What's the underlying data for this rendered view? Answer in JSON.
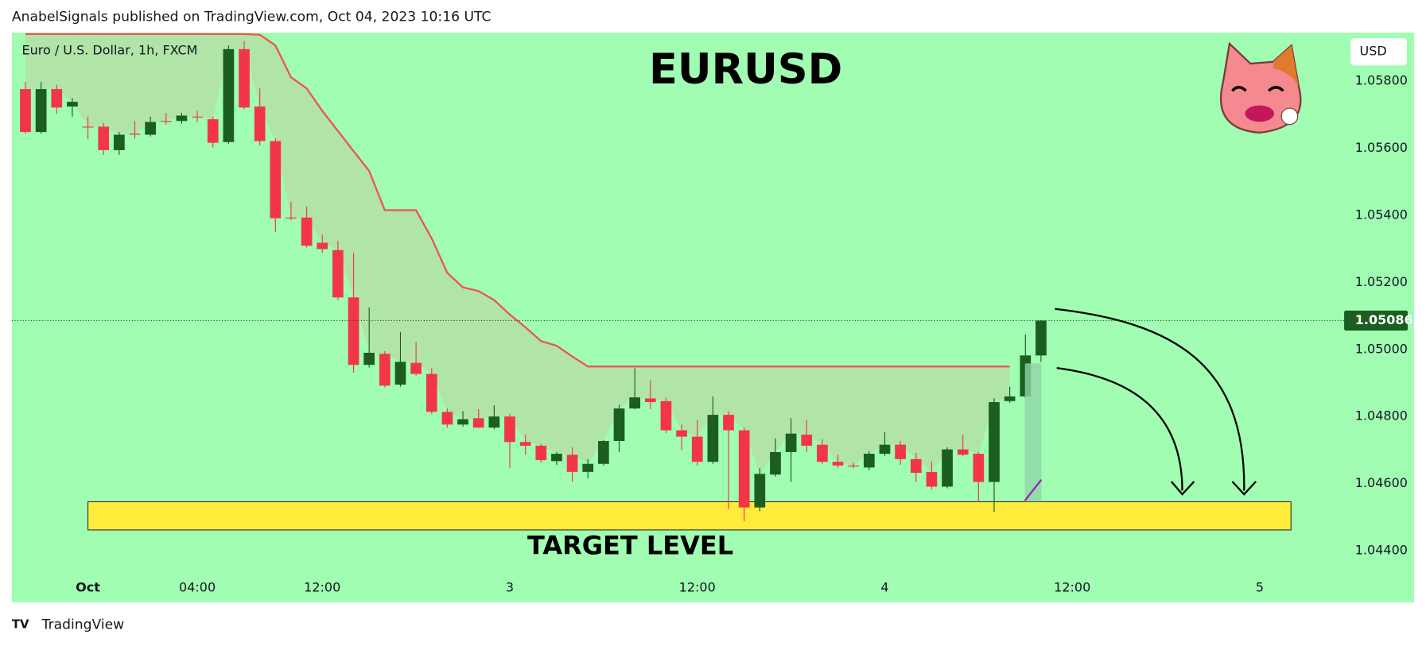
{
  "chart_data": {
    "type": "candlestick",
    "title": "EURUSD",
    "publisher_note": "AnabelSignals published on TradingView.com, Oct 04, 2023 10:16 UTC",
    "symbol": "Euro / U.S. Dollar, 1h, FXCM",
    "currency": "USD",
    "brand": "TradingView",
    "up_color": "#1b5e20",
    "down_color": "#f23645",
    "background": "#a0fdb2",
    "grid": false,
    "xlim": [
      -0.87,
      84.4
    ],
    "xticks": [
      {
        "value": 4,
        "label": "Oct"
      },
      {
        "value": 11,
        "label": "04:00"
      },
      {
        "value": 19,
        "label": "12:00"
      },
      {
        "value": 31,
        "label": "3"
      },
      {
        "value": 43,
        "label": "12:00"
      },
      {
        "value": 55,
        "label": "4"
      },
      {
        "value": 67,
        "label": "12:00"
      },
      {
        "value": 79,
        "label": "5"
      }
    ],
    "ylim": [
      1.04246,
      1.05944
    ],
    "yticks": [
      {
        "value": 1.044,
        "label": "1.04400"
      },
      {
        "value": 1.046,
        "label": "1.04600"
      },
      {
        "value": 1.048,
        "label": "1.04800"
      },
      {
        "value": 1.05,
        "label": "1.05000"
      },
      {
        "value": 1.052,
        "label": "1.05200"
      },
      {
        "value": 1.054,
        "label": "1.05400"
      },
      {
        "value": 1.056,
        "label": "1.05600"
      },
      {
        "value": 1.058,
        "label": "1.05800"
      }
    ],
    "open": [
      1.05776,
      1.05648,
      1.05776,
      1.05724,
      1.05664,
      1.05664,
      1.05594,
      1.05643,
      1.0564,
      1.05681,
      1.05681,
      1.05694,
      1.05686,
      1.05618,
      1.05895,
      1.05724,
      1.05621,
      1.05393,
      1.05393,
      1.05318,
      1.05296,
      1.05155,
      1.04954,
      1.04987,
      1.04895,
      1.0496,
      1.04927,
      1.04814,
      1.04776,
      1.04795,
      1.04767,
      1.048,
      1.04724,
      1.04713,
      1.04667,
      1.04686,
      1.04635,
      1.04659,
      1.04727,
      1.04824,
      1.04854,
      1.04846,
      1.04759,
      1.0474,
      1.04665,
      1.04805,
      1.04759,
      1.04529,
      1.04627,
      1.04694,
      1.04746,
      1.04716,
      1.04665,
      1.04654,
      1.04648,
      1.04689,
      1.04716,
      1.04673,
      1.04635,
      1.04591,
      1.04702,
      1.04689,
      1.04605,
      1.04846,
      1.0486,
      1.04982
    ],
    "high": [
      1.05797,
      1.05797,
      1.05789,
      1.05749,
      1.05694,
      1.05675,
      1.05648,
      1.05681,
      1.05694,
      1.05705,
      1.05705,
      1.05711,
      1.05694,
      1.05906,
      1.05919,
      1.05778,
      1.05629,
      1.0544,
      1.05426,
      1.05342,
      1.05323,
      1.05288,
      1.05125,
      1.04995,
      1.05052,
      1.05022,
      1.04944,
      1.04824,
      1.04816,
      1.04822,
      1.04833,
      1.04808,
      1.04746,
      1.04719,
      1.04694,
      1.04708,
      1.04673,
      1.0473,
      1.04835,
      1.04944,
      1.04908,
      1.04857,
      1.04776,
      1.04789,
      1.0486,
      1.04816,
      1.04767,
      1.04646,
      1.04735,
      1.04795,
      1.04789,
      1.04732,
      1.04686,
      1.04662,
      1.04697,
      1.04754,
      1.04727,
      1.04692,
      1.04665,
      1.04708,
      1.04746,
      1.04694,
      1.04854,
      1.04889,
      1.05044,
      1.05087
    ],
    "low": [
      1.05643,
      1.05643,
      1.05702,
      1.05694,
      1.05627,
      1.0558,
      1.0558,
      1.05629,
      1.05635,
      1.0567,
      1.05673,
      1.05678,
      1.05602,
      1.05613,
      1.05716,
      1.05608,
      1.0535,
      1.05385,
      1.05304,
      1.05288,
      1.05147,
      1.0493,
      1.04946,
      1.04887,
      1.04889,
      1.04922,
      1.04808,
      1.04767,
      1.0477,
      1.04765,
      1.04762,
      1.04646,
      1.04686,
      1.04662,
      1.04656,
      1.04605,
      1.04616,
      1.04654,
      1.04694,
      1.04822,
      1.04822,
      1.04751,
      1.047,
      1.04654,
      1.04659,
      1.04524,
      1.04488,
      1.04518,
      1.04621,
      1.04605,
      1.04694,
      1.04659,
      1.04646,
      1.04646,
      1.0464,
      1.04683,
      1.04656,
      1.04605,
      1.04583,
      1.04586,
      1.04681,
      1.04545,
      1.04515,
      1.04841,
      1.04854,
      1.04963
    ],
    "close": [
      1.05648,
      1.05776,
      1.05721,
      1.05738,
      1.05662,
      1.05594,
      1.0564,
      1.0564,
      1.05678,
      1.0568,
      1.05697,
      1.05693,
      1.05616,
      1.05895,
      1.05721,
      1.05621,
      1.05391,
      1.05392,
      1.05309,
      1.05299,
      1.05155,
      1.04954,
      1.0499,
      1.04892,
      1.04963,
      1.04927,
      1.04814,
      1.04776,
      1.04792,
      1.04767,
      1.048,
      1.04724,
      1.04713,
      1.0467,
      1.04689,
      1.04635,
      1.04659,
      1.04727,
      1.04824,
      1.04857,
      1.04843,
      1.04759,
      1.0474,
      1.04665,
      1.04805,
      1.04759,
      1.04529,
      1.04629,
      1.04694,
      1.04749,
      1.04713,
      1.04665,
      1.04654,
      1.04651,
      1.04689,
      1.04716,
      1.04673,
      1.04632,
      1.04591,
      1.04702,
      1.04686,
      1.04605,
      1.04843,
      1.0486,
      1.04982,
      1.05086
    ],
    "stop_line": {
      "color": "#ef5350",
      "fill": "#b4e0a4",
      "values": [
        1.0594,
        1.0594,
        1.0594,
        1.0594,
        1.0594,
        1.0594,
        1.0594,
        1.0594,
        1.0594,
        1.0594,
        1.0594,
        1.0594,
        1.0594,
        1.0594,
        1.0594,
        1.05938,
        1.05906,
        1.05811,
        1.05778,
        1.05711,
        1.05651,
        1.05591,
        1.05532,
        1.05415,
        1.05415,
        1.05415,
        1.05331,
        1.05228,
        1.05185,
        1.05174,
        1.05147,
        1.05104,
        1.05066,
        1.05025,
        1.05011,
        1.04979,
        1.04949,
        1.04949,
        1.04949,
        1.04949,
        1.04949,
        1.04949,
        1.04949,
        1.04949,
        1.04949,
        1.04949,
        1.04949,
        1.04949,
        1.04949,
        1.04949,
        1.04949,
        1.04949,
        1.04949,
        1.04949,
        1.04949,
        1.04949,
        1.04949,
        1.04949,
        1.04949,
        1.04949,
        1.04949,
        1.04949,
        1.04949,
        1.04949
      ]
    },
    "target_zone": {
      "label": "TARGET LEVEL",
      "color": "#ffeb3b",
      "x": [
        4,
        81
      ],
      "y": [
        1.04462,
        1.04546
      ]
    }
  }
}
